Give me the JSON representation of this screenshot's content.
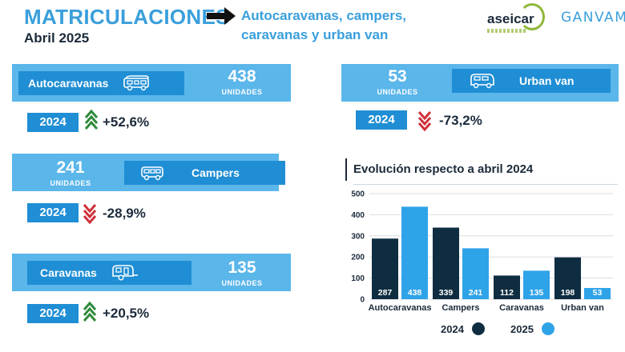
{
  "header": {
    "title": "MATRICULACIONES",
    "date": "Abril 2025",
    "headline_line1": "Autocaravanas, campers,",
    "headline_line2": "caravanas y urban van",
    "logo_aseicar": "aseicar",
    "logo_ganvam": "GANVAM"
  },
  "stats": {
    "autocaravanas": {
      "label": "Autocaravanas",
      "value": "438",
      "unit": "UNIDADES",
      "year": "2024",
      "change": "+52,6%",
      "icon": "motorhome-icon",
      "trend": "up"
    },
    "urban_van": {
      "label": "Urban van",
      "value": "53",
      "unit": "UNIDADES",
      "year": "2024",
      "change": "-73,2%",
      "icon": "van-icon",
      "trend": "down"
    },
    "campers": {
      "label": "Campers",
      "value": "241",
      "unit": "UNIDADES",
      "year": "2024",
      "change": "-28,9%",
      "icon": "camper-icon",
      "trend": "down"
    },
    "caravanas": {
      "label": "Caravanas",
      "value": "135",
      "unit": "UNIDADES",
      "year": "2024",
      "change": "+20,5%",
      "icon": "caravan-icon",
      "trend": "up"
    }
  },
  "colors": {
    "band": "#5bb6ea",
    "label_box": "#1f8ed4",
    "series_2024": "#0f2d40",
    "series_2025": "#2ea3e8",
    "trend_up": "#2f8a3a",
    "trend_down": "#d0303a"
  },
  "chart_data": {
    "type": "bar",
    "title": "Evolución respecto a abril 2024",
    "categories": [
      "Autocaravanas",
      "Campers",
      "Caravanas",
      "Urban van"
    ],
    "series": [
      {
        "name": "2024",
        "values": [
          287,
          339,
          112,
          198
        ],
        "color": "#0f2d40"
      },
      {
        "name": "2025",
        "values": [
          438,
          241,
          135,
          53
        ],
        "color": "#2ea3e8"
      }
    ],
    "yticks": [
      0,
      100,
      200,
      300,
      400,
      500
    ],
    "ylim": [
      0,
      500
    ],
    "xlabel": "",
    "ylabel": "",
    "grid": true,
    "legend": "bottom",
    "data_labels": true
  }
}
